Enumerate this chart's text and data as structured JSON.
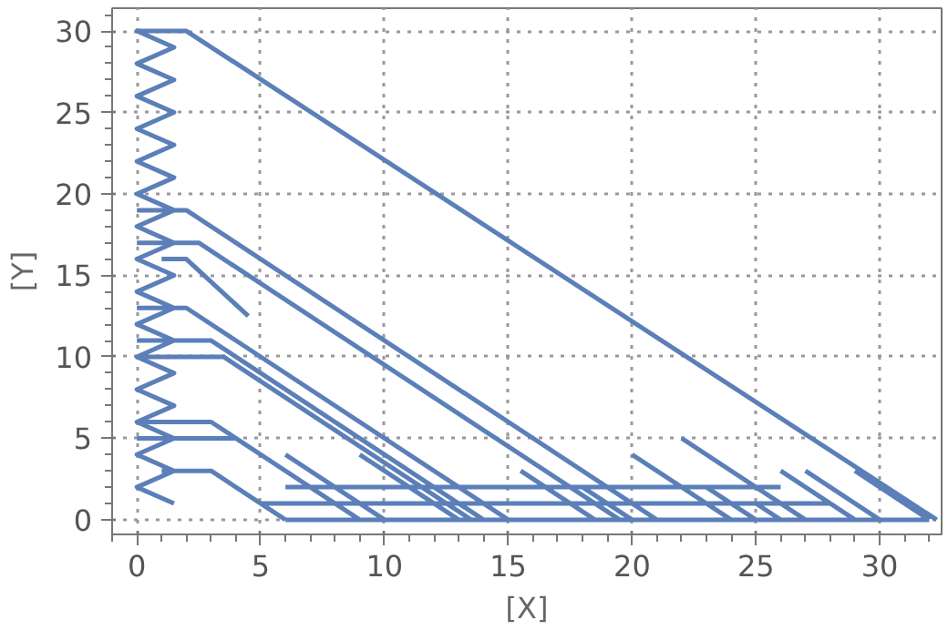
{
  "chart_data": {
    "type": "line",
    "xlabel": "[X]",
    "ylabel": "[Y]",
    "xlim": [
      -1,
      32.5
    ],
    "ylim": [
      -0.9,
      31.4
    ],
    "xticks": [
      0,
      5,
      10,
      15,
      20,
      25,
      30
    ],
    "yticks": [
      0,
      5,
      10,
      15,
      20,
      25,
      30
    ],
    "grid": true,
    "line_style": "solid",
    "series": [
      {
        "color": "#5b7fb8",
        "x": [
          32.3,
          2,
          0,
          1.5,
          0,
          1.5,
          0,
          1.5,
          0,
          1.5,
          0,
          1.5,
          0,
          1.5,
          0,
          1.5,
          0,
          1.5,
          0,
          1.5,
          0,
          1.5,
          0,
          1.5,
          0,
          1.5,
          0,
          1.5,
          0,
          1.5,
          0,
          1.5,
          null,
          0,
          2,
          21,
          null,
          0,
          2.5,
          19.5,
          null,
          1,
          2,
          4.5,
          null,
          0,
          2,
          15,
          null,
          0,
          3,
          14,
          null,
          0,
          3.5,
          13.5,
          null,
          0,
          3,
          9,
          null,
          0,
          4,
          8,
          null,
          1,
          3,
          6,
          null,
          6,
          10,
          null,
          9,
          13,
          null,
          12.5,
          15,
          null,
          15.5,
          18.5,
          null,
          18,
          20,
          null,
          20,
          24,
          null,
          22,
          27,
          null,
          23,
          25,
          null,
          26,
          29,
          null,
          27,
          30,
          null,
          29,
          32,
          null,
          25,
          26,
          null,
          6,
          32,
          null,
          5,
          28,
          null,
          6,
          26
        ],
        "values": [
          0,
          30,
          30,
          29,
          28,
          27,
          26,
          25,
          24,
          23,
          22,
          21,
          20,
          19,
          18,
          17,
          16,
          15,
          14,
          13,
          12,
          11,
          10,
          9,
          8,
          7,
          6,
          5,
          4,
          3,
          2,
          1,
          null,
          19,
          19,
          0,
          null,
          17,
          17,
          0,
          null,
          16,
          16,
          12.5,
          null,
          13,
          13,
          0,
          null,
          11,
          11,
          0,
          null,
          10,
          10,
          0,
          null,
          6,
          6,
          0,
          null,
          5,
          5,
          1,
          null,
          3,
          3,
          0,
          null,
          4,
          0,
          null,
          4,
          0,
          null,
          2.5,
          0,
          null,
          3,
          0,
          null,
          2,
          0,
          null,
          4,
          0,
          null,
          5,
          0,
          null,
          2,
          0,
          null,
          3,
          0,
          null,
          3,
          0,
          null,
          3,
          0,
          null,
          1,
          0,
          null,
          0,
          0,
          null,
          1,
          1,
          null,
          2,
          2
        ]
      }
    ]
  }
}
